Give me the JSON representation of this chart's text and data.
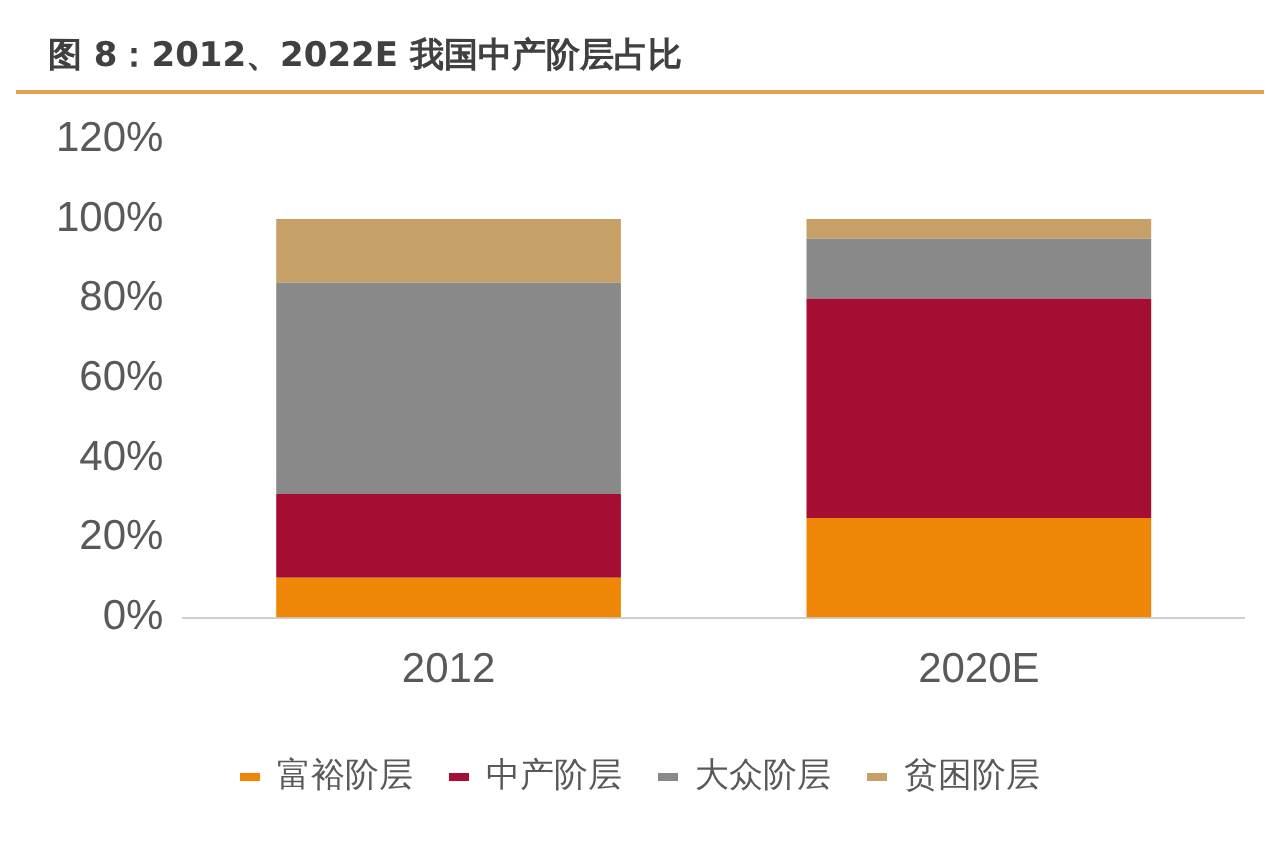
{
  "chart_data": {
    "type": "bar",
    "title": "图 8：2012、2022E 我国中产阶层占比",
    "categories": [
      "2012",
      "2020E"
    ],
    "stacked": true,
    "series": [
      {
        "name": "富裕阶层",
        "color": "#ee8608",
        "values": [
          10,
          25
        ]
      },
      {
        "name": "中产阶层",
        "color": "#a50d32",
        "values": [
          21,
          55
        ]
      },
      {
        "name": "大众阶层",
        "color": "#898989",
        "values": [
          53,
          15
        ]
      },
      {
        "name": "贫困阶层",
        "color": "#c6a066",
        "values": [
          16,
          5
        ]
      }
    ],
    "ylim": [
      0,
      120
    ],
    "yticks": [
      {
        "value": 0,
        "label": "0%"
      },
      {
        "value": 20,
        "label": "20%"
      },
      {
        "value": 40,
        "label": "40%"
      },
      {
        "value": 60,
        "label": "60%"
      },
      {
        "value": 80,
        "label": "80%"
      },
      {
        "value": 100,
        "label": "100%"
      },
      {
        "value": 120,
        "label": "120%"
      }
    ],
    "grid": false,
    "legend": "bottom"
  }
}
